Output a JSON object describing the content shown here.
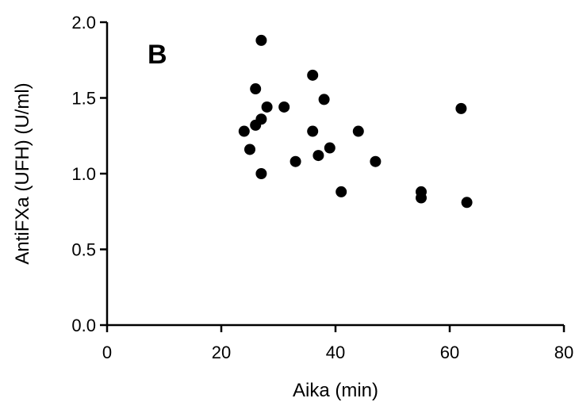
{
  "chart_data": {
    "type": "scatter",
    "panel_label": "B",
    "xlabel": "Aika (min)",
    "ylabel": "AntiFXa (UFH) (U/ml)",
    "xlim": [
      0,
      80
    ],
    "ylim": [
      0.0,
      2.0
    ],
    "xticks": [
      0,
      20,
      40,
      60,
      80
    ],
    "yticks": [
      0.0,
      0.5,
      1.0,
      1.5,
      2.0
    ],
    "xtick_labels": [
      "0",
      "20",
      "40",
      "60",
      "80"
    ],
    "ytick_labels": [
      "0.0",
      "0.5",
      "1.0",
      "1.5",
      "2.0"
    ],
    "grid": false,
    "marker_color": "#000000",
    "points": [
      {
        "x": 24,
        "y": 1.28
      },
      {
        "x": 25,
        "y": 1.16
      },
      {
        "x": 26,
        "y": 1.56
      },
      {
        "x": 26,
        "y": 1.32
      },
      {
        "x": 27,
        "y": 1.88
      },
      {
        "x": 27,
        "y": 1.36
      },
      {
        "x": 27,
        "y": 1.0
      },
      {
        "x": 28,
        "y": 1.44
      },
      {
        "x": 31,
        "y": 1.44
      },
      {
        "x": 33,
        "y": 1.08
      },
      {
        "x": 36,
        "y": 1.65
      },
      {
        "x": 36,
        "y": 1.28
      },
      {
        "x": 37,
        "y": 1.12
      },
      {
        "x": 38,
        "y": 1.49
      },
      {
        "x": 39,
        "y": 1.17
      },
      {
        "x": 41,
        "y": 0.88
      },
      {
        "x": 44,
        "y": 1.28
      },
      {
        "x": 47,
        "y": 1.08
      },
      {
        "x": 55,
        "y": 0.88
      },
      {
        "x": 55,
        "y": 0.84
      },
      {
        "x": 62,
        "y": 1.43
      },
      {
        "x": 63,
        "y": 0.81
      }
    ]
  }
}
